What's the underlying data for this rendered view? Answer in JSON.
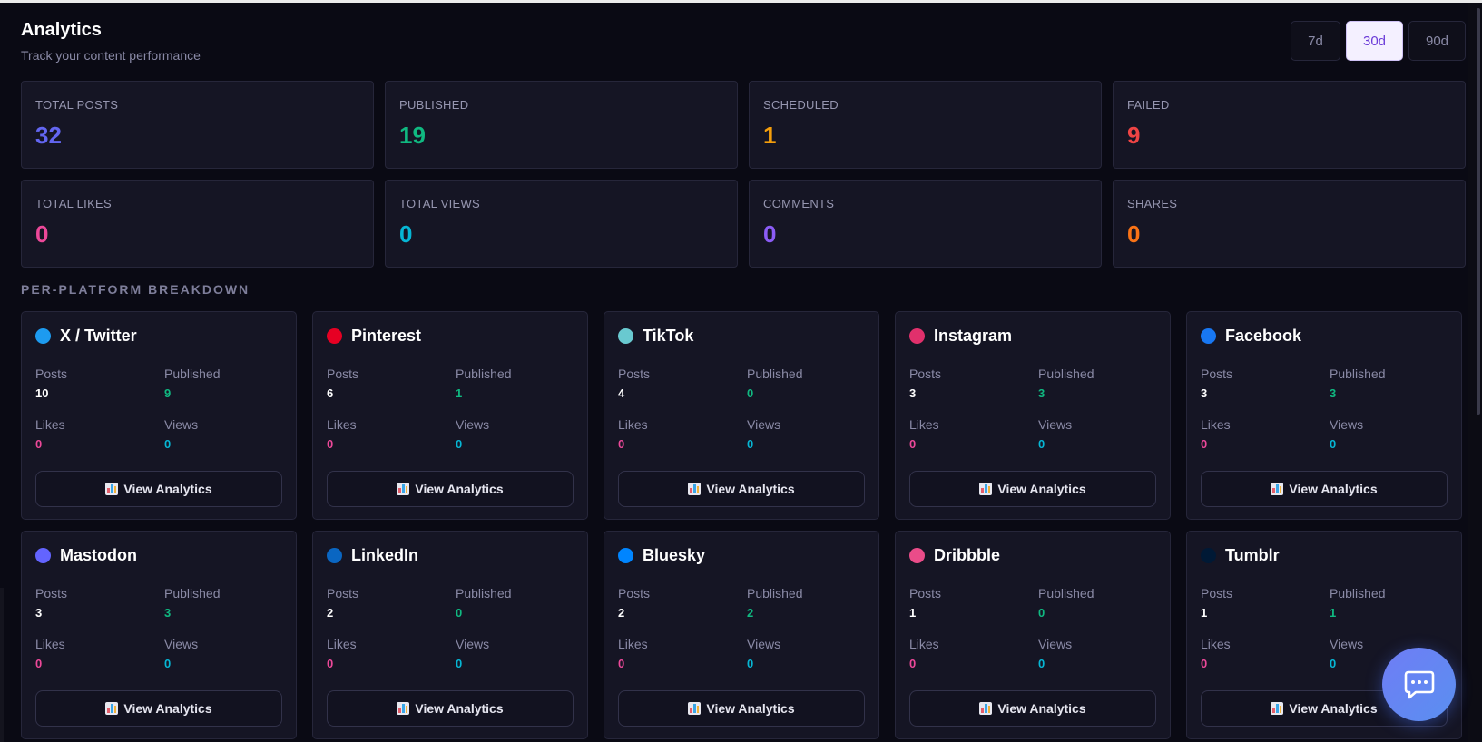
{
  "header": {
    "title": "Analytics",
    "subtitle": "Track your content performance"
  },
  "range": {
    "options": [
      "7d",
      "30d",
      "90d"
    ],
    "selected": "30d"
  },
  "stats": [
    {
      "label": "TOTAL POSTS",
      "value": "32",
      "color": "#6366f1"
    },
    {
      "label": "PUBLISHED",
      "value": "19",
      "color": "#10b981"
    },
    {
      "label": "SCHEDULED",
      "value": "1",
      "color": "#f59e0b"
    },
    {
      "label": "FAILED",
      "value": "9",
      "color": "#ef4444"
    },
    {
      "label": "TOTAL LIKES",
      "value": "0",
      "color": "#ec4899"
    },
    {
      "label": "TOTAL VIEWS",
      "value": "0",
      "color": "#06b6d4"
    },
    {
      "label": "COMMENTS",
      "value": "0",
      "color": "#8b5cf6"
    },
    {
      "label": "SHARES",
      "value": "0",
      "color": "#f97316"
    }
  ],
  "breakdown": {
    "title": "PER-PLATFORM BREAKDOWN",
    "metric_labels": {
      "posts": "Posts",
      "published": "Published",
      "likes": "Likes",
      "views": "Views"
    },
    "button_label": "View Analytics",
    "button_icon": "bar-chart-icon",
    "platforms": [
      {
        "name": "X / Twitter",
        "color": "#1d9bf0",
        "posts": "10",
        "published": "9",
        "likes": "0",
        "views": "0"
      },
      {
        "name": "Pinterest",
        "color": "#e60023",
        "posts": "6",
        "published": "1",
        "likes": "0",
        "views": "0"
      },
      {
        "name": "TikTok",
        "color": "#69c9d0",
        "posts": "4",
        "published": "0",
        "likes": "0",
        "views": "0"
      },
      {
        "name": "Instagram",
        "color": "#e1306c",
        "posts": "3",
        "published": "3",
        "likes": "0",
        "views": "0"
      },
      {
        "name": "Facebook",
        "color": "#1877f2",
        "posts": "3",
        "published": "3",
        "likes": "0",
        "views": "0"
      },
      {
        "name": "Mastodon",
        "color": "#6364ff",
        "posts": "3",
        "published": "3",
        "likes": "0",
        "views": "0"
      },
      {
        "name": "LinkedIn",
        "color": "#0a66c2",
        "posts": "2",
        "published": "0",
        "likes": "0",
        "views": "0"
      },
      {
        "name": "Bluesky",
        "color": "#0085ff",
        "posts": "2",
        "published": "2",
        "likes": "0",
        "views": "0"
      },
      {
        "name": "Dribbble",
        "color": "#ea4c89",
        "posts": "1",
        "published": "0",
        "likes": "0",
        "views": "0"
      },
      {
        "name": "Tumblr",
        "color": "#001935",
        "posts": "1",
        "published": "1",
        "likes": "0",
        "views": "0"
      }
    ]
  },
  "colors": {
    "posts_value": "#ffffff",
    "published_value": "#10b981",
    "likes_value": "#ec4899",
    "views_value": "#06b6d4"
  },
  "chat": {
    "icon": "chat-icon"
  }
}
